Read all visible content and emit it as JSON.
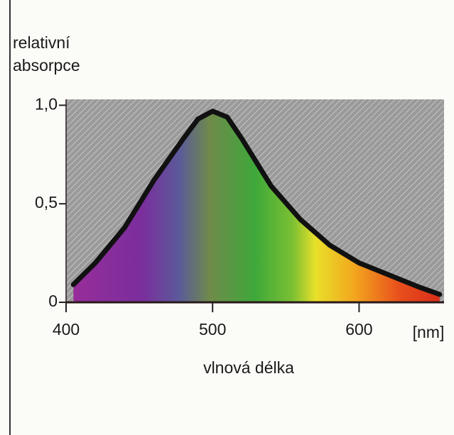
{
  "chart_data": {
    "type": "line",
    "ylabel": "relativní absorpce",
    "xlabel": "vlnová délka",
    "xunit": "[nm]",
    "x": [
      405,
      420,
      440,
      460,
      480,
      490,
      500,
      510,
      520,
      540,
      560,
      580,
      600,
      620,
      640,
      655
    ],
    "values": [
      0.09,
      0.2,
      0.38,
      0.62,
      0.83,
      0.93,
      0.97,
      0.94,
      0.83,
      0.59,
      0.42,
      0.29,
      0.2,
      0.14,
      0.08,
      0.04
    ],
    "color": "#111111",
    "xlim": [
      400,
      658
    ],
    "xticks": [
      400,
      500,
      600
    ],
    "ylim": [
      0,
      1.03
    ],
    "yticks": [
      0,
      {
        "value": 0.5,
        "label": "0,5"
      },
      {
        "value": 1,
        "label": "1,0"
      }
    ]
  }
}
